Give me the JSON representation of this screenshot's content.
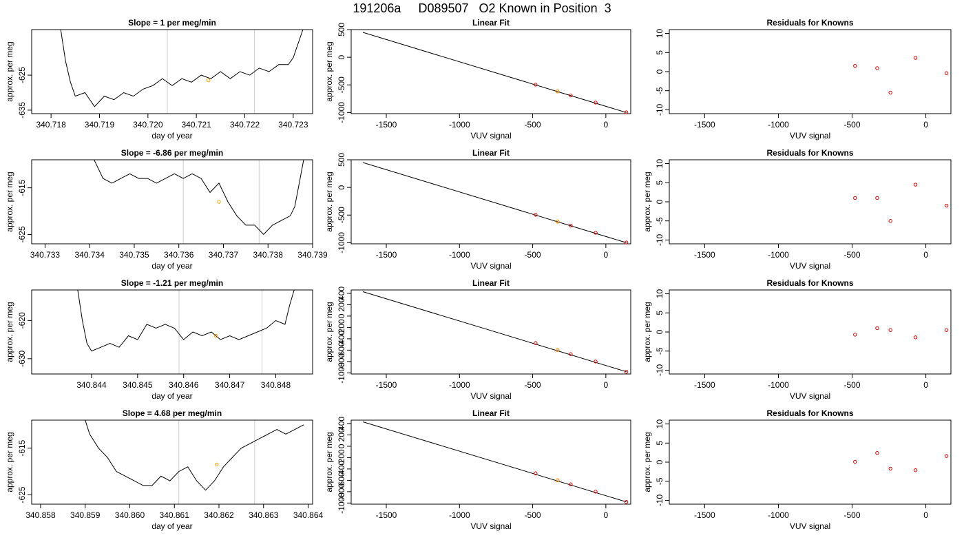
{
  "figure": {
    "title": "191206a     D089507   O2 Known in Position  3"
  },
  "chart_data": [
    {
      "type": "line",
      "title": "Slope =  1  per meg/min",
      "xlabel": "day of year",
      "ylabel": "approx. per meg",
      "xlim": [
        340.7176,
        340.7234
      ],
      "ylim": [
        -636,
        -612
      ],
      "xticks": [
        "340.718",
        "340.719",
        "340.720",
        "340.721",
        "340.722",
        "340.723"
      ],
      "xtick_values": [
        340.718,
        340.719,
        340.72,
        340.721,
        340.722,
        340.723
      ],
      "yticks": [
        "-635",
        "-625"
      ],
      "ytick_values": [
        -635,
        -625
      ],
      "ylabels_rotated": true,
      "vlines": [
        340.7204,
        340.7222
      ],
      "line_color": "#000000",
      "vline_color": "#cccccc",
      "series": [
        {
          "x": [
            340.7182,
            340.7183,
            340.7184,
            340.7185,
            340.7187,
            340.7189,
            340.7191,
            340.7193,
            340.7195,
            340.7197,
            340.7199,
            340.7201,
            340.7203,
            340.7205,
            340.7207,
            340.7209,
            340.7211,
            340.7213,
            340.7215,
            340.7217,
            340.7219,
            340.7221,
            340.7223,
            340.7225,
            340.7227,
            340.7229,
            340.723,
            340.7231,
            340.7232
          ],
          "y": [
            -612,
            -621,
            -627,
            -631,
            -630,
            -634,
            -631,
            -632,
            -630,
            -631,
            -629,
            -628,
            -626,
            -628,
            -626,
            -627,
            -625,
            -626,
            -624,
            -626,
            -624,
            -625,
            -623,
            -624,
            -622,
            -622,
            -620,
            -616,
            -612
          ]
        }
      ],
      "highlight_points": [
        {
          "x": 340.72125,
          "y": -626.5
        }
      ],
      "highlight_color": "#ffa500"
    },
    {
      "type": "scatter",
      "title": "Linear Fit",
      "xlabel": "VUV signal",
      "ylabel": "approx. per meg",
      "xlim": [
        -1740,
        170
      ],
      "ylim": [
        -1020,
        500
      ],
      "xticks": [
        "-1500",
        "-1000",
        "-500",
        "0"
      ],
      "xtick_values": [
        -1500,
        -1000,
        -500,
        0
      ],
      "yticks": [
        "-1000",
        "-500",
        "0",
        "500"
      ],
      "ytick_values": [
        -1000,
        -500,
        0,
        500
      ],
      "fit_line": {
        "x": [
          -1660,
          140
        ],
        "y": [
          450,
          -1000
        ]
      },
      "points": {
        "x": [
          -480,
          -330,
          -240,
          -70,
          140
        ],
        "y": [
          -495,
          -617,
          -690,
          -820,
          -996
        ]
      },
      "highlight_points": [
        {
          "x": -330,
          "y": -617
        }
      ],
      "point_color": "#d00000",
      "highlight_color": "#ffa500"
    },
    {
      "type": "scatter",
      "title": "Residuals for Knowns",
      "xlabel": "VUV signal",
      "ylabel": "",
      "xlim": [
        -1740,
        170
      ],
      "ylim": [
        -11,
        11
      ],
      "xticks": [
        "-1500",
        "-1000",
        "-500",
        "0"
      ],
      "xtick_values": [
        -1500,
        -1000,
        -500,
        0
      ],
      "yticks": [
        "-10",
        "-5",
        "0",
        "5",
        "10"
      ],
      "ytick_values": [
        -10,
        -5,
        0,
        5,
        10
      ],
      "points": {
        "x": [
          -480,
          -330,
          -240,
          -70,
          140
        ],
        "y": [
          1.5,
          0.9,
          -5.5,
          3.6,
          -0.4
        ]
      },
      "point_color": "#d00000"
    },
    {
      "type": "line",
      "title": "Slope =  -6.86  per meg/min",
      "xlabel": "day of year",
      "ylabel": "approx. per meg",
      "xlim": [
        340.7327,
        340.739
      ],
      "ylim": [
        -627,
        -609
      ],
      "xticks": [
        "340.733",
        "340.734",
        "340.735",
        "340.736",
        "340.737",
        "340.738",
        "340.739"
      ],
      "xtick_values": [
        340.733,
        340.734,
        340.735,
        340.736,
        340.737,
        340.738,
        340.739
      ],
      "yticks": [
        "-625",
        "-615"
      ],
      "ytick_values": [
        -625,
        -615
      ],
      "ylabels_rotated": true,
      "vlines": [
        340.7361,
        340.7378
      ],
      "line_color": "#000000",
      "vline_color": "#cccccc",
      "series": [
        {
          "x": [
            340.7341,
            340.7343,
            340.7345,
            340.7347,
            340.7349,
            340.7351,
            340.7353,
            340.7355,
            340.7357,
            340.7359,
            340.7361,
            340.7363,
            340.7365,
            340.7367,
            340.7369,
            340.7371,
            340.7373,
            340.7375,
            340.7377,
            340.7379,
            340.7381,
            340.7383,
            340.7385,
            340.7386,
            340.7387,
            340.7388
          ],
          "y": [
            -609,
            -613,
            -614,
            -613,
            -612,
            -613,
            -613,
            -614,
            -613,
            -612,
            -613,
            -612,
            -613,
            -616,
            -614,
            -618,
            -621,
            -623,
            -623,
            -625,
            -623,
            -622,
            -621,
            -619,
            -614,
            -609
          ]
        }
      ],
      "highlight_points": [
        {
          "x": 340.7369,
          "y": -618
        }
      ],
      "highlight_color": "#ffa500"
    },
    {
      "type": "scatter",
      "title": "Linear Fit",
      "xlabel": "VUV signal",
      "ylabel": "approx. per meg",
      "xlim": [
        -1740,
        170
      ],
      "ylim": [
        -1020,
        500
      ],
      "xticks": [
        "-1500",
        "-1000",
        "-500",
        "0"
      ],
      "xtick_values": [
        -1500,
        -1000,
        -500,
        0
      ],
      "yticks": [
        "-1000",
        "-500",
        "0",
        "500"
      ],
      "ytick_values": [
        -1000,
        -500,
        0,
        500
      ],
      "fit_line": {
        "x": [
          -1660,
          140
        ],
        "y": [
          450,
          -1000
        ]
      },
      "points": {
        "x": [
          -480,
          -330,
          -240,
          -70,
          140
        ],
        "y": [
          -495,
          -617,
          -690,
          -820,
          -996
        ]
      },
      "highlight_points": [
        {
          "x": -330,
          "y": -617
        }
      ],
      "point_color": "#d00000",
      "highlight_color": "#ffa500"
    },
    {
      "type": "scatter",
      "title": "Residuals for Knowns",
      "xlabel": "VUV signal",
      "ylabel": "approx. per meg",
      "xlim": [
        -1740,
        170
      ],
      "ylim": [
        -11,
        11
      ],
      "xticks": [
        "-1500",
        "-1000",
        "-500",
        "0"
      ],
      "xtick_values": [
        -1500,
        -1000,
        -500,
        0
      ],
      "yticks": [
        "-10",
        "-5",
        "0",
        "5",
        "10"
      ],
      "ytick_values": [
        -10,
        -5,
        0,
        5,
        10
      ],
      "points": {
        "x": [
          -480,
          -330,
          -240,
          -70,
          140
        ],
        "y": [
          1.0,
          1.0,
          -5.0,
          4.5,
          -1.0
        ]
      },
      "point_color": "#d00000"
    },
    {
      "type": "line",
      "title": "Slope =  -1.21  per meg/min",
      "xlabel": "day of year",
      "ylabel": "approx. per meg",
      "xlim": [
        340.8422,
        340.8483
      ],
      "ylim": [
        -634,
        -612
      ],
      "xticks": [
        "340.844",
        "340.845",
        "340.846",
        "340.847",
        "340.848"
      ],
      "xtick_values": [
        340.8435,
        340.8445,
        340.8455,
        340.8465,
        340.8475
      ],
      "yticks": [
        "-630",
        "-620"
      ],
      "ytick_values": [
        -630,
        -620
      ],
      "ylabels_rotated": true,
      "vlines": [
        340.8454,
        340.8472
      ],
      "line_color": "#000000",
      "vline_color": "#cccccc",
      "series": [
        {
          "x": [
            340.8432,
            340.8433,
            340.8434,
            340.8435,
            340.8437,
            340.8439,
            340.8441,
            340.8443,
            340.8445,
            340.8447,
            340.8449,
            340.8451,
            340.8453,
            340.8455,
            340.8457,
            340.8459,
            340.8461,
            340.8463,
            340.8465,
            340.8467,
            340.8469,
            340.8471,
            340.8473,
            340.8475,
            340.8477,
            340.8478,
            340.8479
          ],
          "y": [
            -612,
            -620,
            -626,
            -628,
            -627,
            -626,
            -627,
            -624,
            -625,
            -621,
            -622,
            -621,
            -622,
            -625,
            -623,
            -624,
            -623,
            -625,
            -624,
            -625,
            -624,
            -623,
            -622,
            -620,
            -621,
            -616,
            -612
          ]
        }
      ],
      "highlight_points": [
        {
          "x": 340.8462,
          "y": -624
        }
      ],
      "highlight_color": "#ffa500"
    },
    {
      "type": "scatter",
      "title": "Linear Fit",
      "xlabel": "VUV signal",
      "ylabel": "approx. per meg",
      "xlim": [
        -1740,
        170
      ],
      "ylim": [
        -1020,
        460
      ],
      "xticks": [
        "-1500",
        "-1000",
        "-500",
        "0"
      ],
      "xtick_values": [
        -1500,
        -1000,
        -500,
        0
      ],
      "yticks": [
        "-1000",
        "-800",
        "-600",
        "-400",
        "-200",
        "0",
        "200",
        "400"
      ],
      "ytick_values": [
        -1000,
        -800,
        -600,
        -400,
        -200,
        0,
        200,
        400
      ],
      "fit_line": {
        "x": [
          -1660,
          140
        ],
        "y": [
          430,
          -980
        ]
      },
      "points": {
        "x": [
          -480,
          -330,
          -240,
          -70,
          140
        ],
        "y": [
          -475,
          -600,
          -670,
          -800,
          -980
        ]
      },
      "highlight_points": [
        {
          "x": -330,
          "y": -600
        }
      ],
      "point_color": "#d00000",
      "highlight_color": "#ffa500"
    },
    {
      "type": "scatter",
      "title": "Residuals for Knowns",
      "xlabel": "VUV signal",
      "ylabel": "approx. per meg",
      "xlim": [
        -1740,
        170
      ],
      "ylim": [
        -11,
        11
      ],
      "xticks": [
        "-1500",
        "-1000",
        "-500",
        "0"
      ],
      "xtick_values": [
        -1500,
        -1000,
        -500,
        0
      ],
      "yticks": [
        "-10",
        "-5",
        "0",
        "5",
        "10"
      ],
      "ytick_values": [
        -10,
        -5,
        0,
        5,
        10
      ],
      "points": {
        "x": [
          -480,
          -330,
          -240,
          -70,
          140
        ],
        "y": [
          -0.7,
          1.0,
          0.5,
          -1.4,
          0.5
        ]
      },
      "point_color": "#d00000"
    },
    {
      "type": "line",
      "title": "Slope =  4.68  per meg/min",
      "xlabel": "day of year",
      "ylabel": "approx. per meg",
      "xlim": [
        340.8578,
        340.8641
      ],
      "ylim": [
        -627,
        -609
      ],
      "xticks": [
        "340.858",
        "340.859",
        "340.860",
        "340.861",
        "340.862",
        "340.863",
        "340.864"
      ],
      "xtick_values": [
        340.858,
        340.859,
        340.86,
        340.861,
        340.862,
        340.863,
        340.864
      ],
      "yticks": [
        "-625",
        "-615"
      ],
      "ytick_values": [
        -625,
        -615
      ],
      "ylabels_rotated": true,
      "vlines": [
        340.8611,
        340.8628
      ],
      "line_color": "#000000",
      "vline_color": "#cccccc",
      "series": [
        {
          "x": [
            340.859,
            340.8591,
            340.8593,
            340.8595,
            340.8597,
            340.8599,
            340.8601,
            340.8603,
            340.8605,
            340.8607,
            340.8609,
            340.8611,
            340.8613,
            340.8615,
            340.8617,
            340.8619,
            340.8621,
            340.8623,
            340.8625,
            340.8627,
            340.8629,
            340.8631,
            340.8633,
            340.8635,
            340.8637,
            340.8639
          ],
          "y": [
            -609,
            -612,
            -615,
            -617,
            -620,
            -621,
            -622,
            -623,
            -623,
            -621,
            -622,
            -620,
            -619,
            -622,
            -624,
            -622,
            -619,
            -617,
            -615,
            -614,
            -613,
            -612,
            -611,
            -612,
            -611,
            -610
          ]
        }
      ],
      "highlight_points": [
        {
          "x": 340.86195,
          "y": -618.5
        }
      ],
      "highlight_color": "#ffa500"
    },
    {
      "type": "scatter",
      "title": "Linear Fit",
      "xlabel": "VUV signal",
      "ylabel": "approx. per meg",
      "xlim": [
        -1740,
        170
      ],
      "ylim": [
        -1020,
        460
      ],
      "xticks": [
        "-1500",
        "-1000",
        "-500",
        "0"
      ],
      "xtick_values": [
        -1500,
        -1000,
        -500,
        0
      ],
      "yticks": [
        "-1000",
        "-800",
        "-600",
        "-400",
        "-200",
        "0",
        "200",
        "400"
      ],
      "ytick_values": [
        -1000,
        -800,
        -600,
        -400,
        -200,
        0,
        200,
        400
      ],
      "fit_line": {
        "x": [
          -1660,
          140
        ],
        "y": [
          430,
          -980
        ]
      },
      "points": {
        "x": [
          -480,
          -330,
          -240,
          -70,
          140
        ],
        "y": [
          -475,
          -600,
          -670,
          -800,
          -980
        ]
      },
      "highlight_points": [
        {
          "x": -330,
          "y": -600
        }
      ],
      "point_color": "#d00000",
      "highlight_color": "#ffa500"
    },
    {
      "type": "scatter",
      "title": "Residuals for Knowns",
      "xlabel": "VUV signal",
      "ylabel": "approx. per meg",
      "xlim": [
        -1740,
        170
      ],
      "ylim": [
        -11,
        11
      ],
      "xticks": [
        "-1500",
        "-1000",
        "-500",
        "0"
      ],
      "xtick_values": [
        -1500,
        -1000,
        -500,
        0
      ],
      "yticks": [
        "-10",
        "-5",
        "0",
        "5",
        "10"
      ],
      "ytick_values": [
        -10,
        -5,
        0,
        5,
        10
      ],
      "points": {
        "x": [
          -480,
          -330,
          -240,
          -70,
          140
        ],
        "y": [
          0.1,
          2.4,
          -1.7,
          -2.1,
          1.6
        ]
      },
      "point_color": "#d00000"
    }
  ]
}
